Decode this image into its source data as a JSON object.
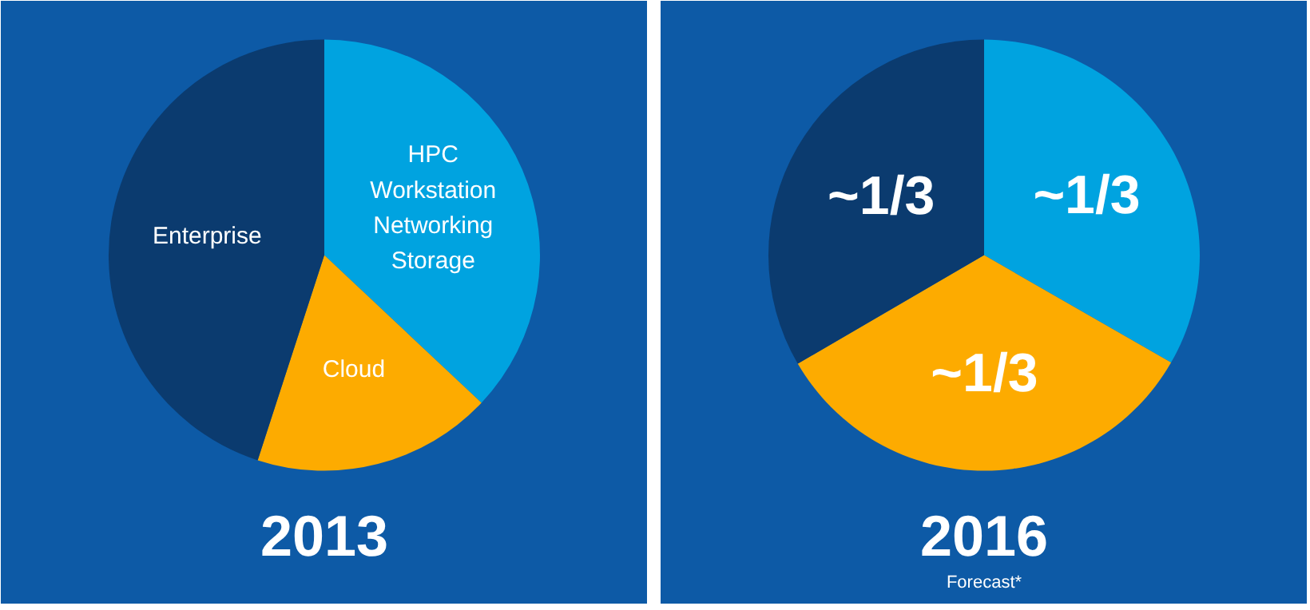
{
  "chart_data": [
    {
      "type": "pie",
      "title": "2013",
      "categories": [
        "HPC\nWorkstation\nNetworking\nStorage",
        "Cloud",
        "Enterprise"
      ],
      "values": [
        37,
        18,
        45
      ],
      "colors": [
        "#00a3e0",
        "#fdab00",
        "#0b3b6f"
      ]
    },
    {
      "type": "pie",
      "title": "2016",
      "subtitle": "Forecast*",
      "categories": [
        null,
        null,
        null
      ],
      "values": [
        33.3,
        33.3,
        33.4
      ],
      "colors": [
        "#00a3e0",
        "#fdab00",
        "#0b3b6f"
      ],
      "value_labels": [
        "~1/3",
        "~1/3",
        "~1/3"
      ]
    }
  ]
}
